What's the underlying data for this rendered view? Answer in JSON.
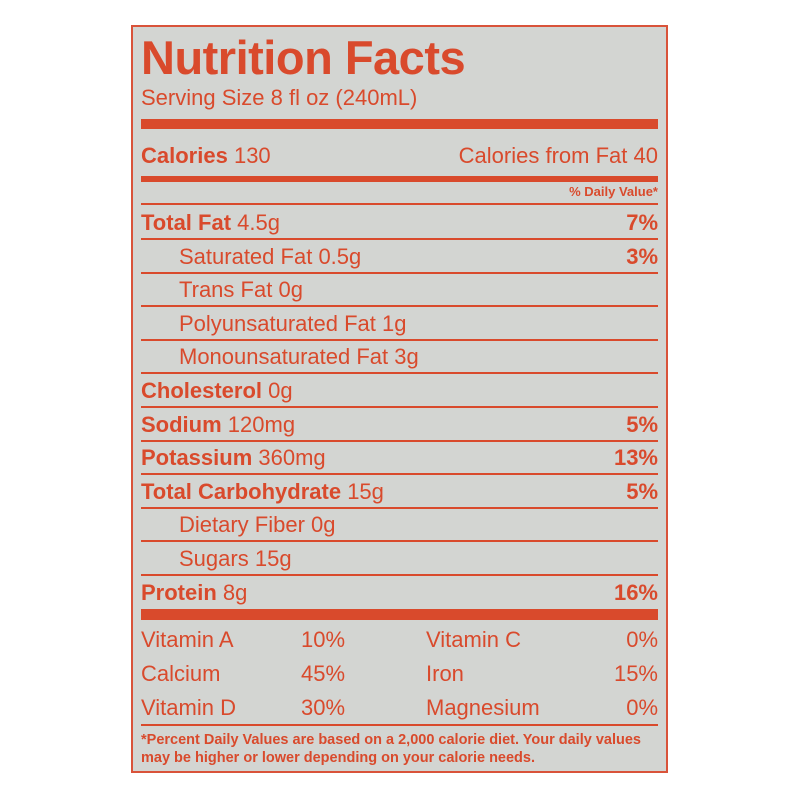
{
  "title": "Nutrition Facts",
  "serving_size": "Serving Size 8 fl oz (240mL)",
  "calories": {
    "label": "Calories",
    "value": "130",
    "from_fat_label": "Calories from Fat",
    "from_fat_value": "40"
  },
  "daily_value_header": "% Daily Value*",
  "nutrients": [
    {
      "name": "Total Fat",
      "amount": "4.5g",
      "dv": "7%",
      "indent": false
    },
    {
      "name": "Saturated Fat",
      "amount": "0.5g",
      "dv": "3%",
      "indent": true
    },
    {
      "name": "Trans Fat",
      "amount": "0g",
      "dv": "",
      "indent": true
    },
    {
      "name": "Polyunsaturated Fat",
      "amount": "1g",
      "dv": "",
      "indent": true
    },
    {
      "name": "Monounsaturated Fat",
      "amount": "3g",
      "dv": "",
      "indent": true
    },
    {
      "name": "Cholesterol",
      "amount": "0g",
      "dv": "",
      "indent": false
    },
    {
      "name": "Sodium",
      "amount": "120mg",
      "dv": "5%",
      "indent": false
    },
    {
      "name": "Potassium",
      "amount": "360mg",
      "dv": "13%",
      "indent": false
    },
    {
      "name": "Total Carbohydrate",
      "amount": "15g",
      "dv": "5%",
      "indent": false
    },
    {
      "name": "Dietary Fiber",
      "amount": "0g",
      "dv": "",
      "indent": true
    },
    {
      "name": "Sugars",
      "amount": "15g",
      "dv": "",
      "indent": true
    },
    {
      "name": "Protein",
      "amount": "8g",
      "dv": "16%",
      "indent": false
    }
  ],
  "vitamins": [
    {
      "name": "Vitamin A",
      "dv": "10%"
    },
    {
      "name": "Vitamin C",
      "dv": "0%"
    },
    {
      "name": "Calcium",
      "dv": "45%"
    },
    {
      "name": "Iron",
      "dv": "15%"
    },
    {
      "name": "Vitamin D",
      "dv": "30%"
    },
    {
      "name": "Magnesium",
      "dv": "0%"
    }
  ],
  "footnote": "*Percent Daily Values are based on a 2,000 calorie diet. Your daily values may be higher or lower depending on your calorie needs.",
  "colors": {
    "ink": "#d94a2c",
    "background": "#d3d5d2"
  }
}
